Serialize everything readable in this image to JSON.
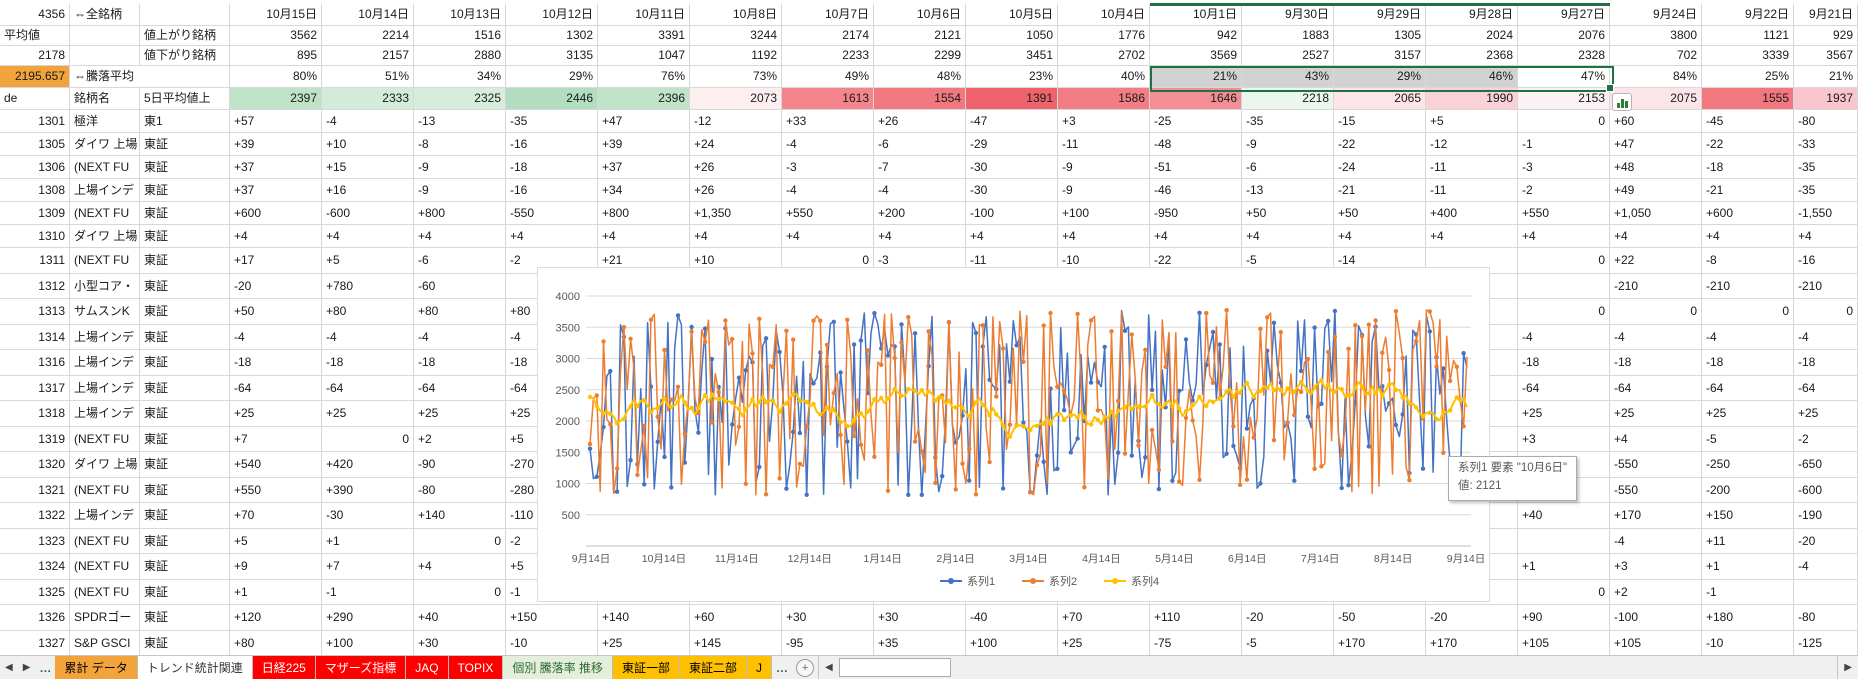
{
  "summary_header": {
    "total_stocks": "4356",
    "all_label": "⇔全銘柄",
    "avg_label": "平均値",
    "avg_value": "2178",
    "updown_avg_value": "2195.657",
    "updown_avg_label": "⇔騰落平均",
    "advancers_label": "値上がり銘柄",
    "decliners_label": "値下がり銘柄",
    "code_header": "de",
    "name_header": "銘柄名",
    "avg5_header": "5日平均値上",
    "dates": [
      "10月15日",
      "10月14日",
      "10月13日",
      "10月12日",
      "10月11日",
      "10月8日",
      "10月7日",
      "10月6日",
      "10月5日",
      "10月4日",
      "10月1日",
      "9月30日",
      "9月29日",
      "9月28日",
      "9月27日",
      "9月24日",
      "9月22日",
      "9月21日"
    ],
    "advancers": [
      "3562",
      "2214",
      "1516",
      "1302",
      "3391",
      "3244",
      "2174",
      "2121",
      "1050",
      "1776",
      "942",
      "1883",
      "1305",
      "2024",
      "2076",
      "3800",
      "1121",
      "929"
    ],
    "decliners": [
      "895",
      "2157",
      "2880",
      "3135",
      "1047",
      "1192",
      "2233",
      "2299",
      "3451",
      "2702",
      "3569",
      "2527",
      "3157",
      "2368",
      "2328",
      "702",
      "3339",
      "3567"
    ],
    "updown_pct": [
      "80%",
      "51%",
      "34%",
      "29%",
      "76%",
      "73%",
      "49%",
      "48%",
      "23%",
      "40%",
      "21%",
      "43%",
      "29%",
      "46%",
      "47%",
      "84%",
      "25%",
      "21%"
    ],
    "avg5_cells": [
      [
        "2397",
        "#bfe3c9"
      ],
      [
        "2333",
        "#d3ecd9"
      ],
      [
        "2325",
        "#d5edda"
      ],
      [
        "2446",
        "#b3ddc0"
      ],
      [
        "2396",
        "#c0e3c9"
      ],
      [
        "2073",
        "#fdeef0"
      ],
      [
        "1613",
        "#f4858c"
      ],
      [
        "1554",
        "#f27880"
      ],
      [
        "1391",
        "#ee636c"
      ],
      [
        "1586",
        "#f37d85"
      ],
      [
        "1646",
        "#f48e95"
      ],
      [
        "2218",
        "#ebf6ef"
      ],
      [
        "2065",
        "#fce4e8"
      ],
      [
        "1990",
        "#f9d1d7"
      ],
      [
        "2153",
        "#fdf2f3"
      ],
      [
        "2075",
        "#fce5e9"
      ],
      [
        "1555",
        "#f27880"
      ],
      [
        "1937",
        "#f8c6cc"
      ]
    ],
    "selected_pct_range": {
      "first_col": 10,
      "last_col": 14,
      "gray_cols": [
        10,
        11,
        12,
        13
      ],
      "active_value": "47%"
    }
  },
  "stocks": [
    {
      "code": "1301",
      "name": "極洋",
      "market": "東1",
      "vals": [
        "+57",
        "-4",
        "-13",
        "-35",
        "+47",
        "-12",
        "+33",
        "+26",
        "-47",
        "+3",
        "-25",
        "-35",
        "-15",
        "+5",
        "0",
        "+60",
        "-45",
        "-80"
      ]
    },
    {
      "code": "1305",
      "name": "ダイワ 上場",
      "market": "東証",
      "vals": [
        "+39",
        "+10",
        "-8",
        "-16",
        "+39",
        "+24",
        "-4",
        "-6",
        "-29",
        "-11",
        "-48",
        "-9",
        "-22",
        "-12",
        "-1",
        "+47",
        "-22",
        "-33"
      ]
    },
    {
      "code": "1306",
      "name": "(NEXT FU",
      "market": "東証",
      "vals": [
        "+37",
        "+15",
        "-9",
        "-18",
        "+37",
        "+26",
        "-3",
        "-7",
        "-30",
        "-9",
        "-51",
        "-6",
        "-24",
        "-11",
        "-3",
        "+48",
        "-18",
        "-35"
      ]
    },
    {
      "code": "1308",
      "name": "上場インデ",
      "market": "東証",
      "vals": [
        "+37",
        "+16",
        "-9",
        "-16",
        "+34",
        "+26",
        "-4",
        "-4",
        "-30",
        "-9",
        "-46",
        "-13",
        "-21",
        "-11",
        "-2",
        "+49",
        "-21",
        "-35"
      ]
    },
    {
      "code": "1309",
      "name": "(NEXT FU",
      "market": "東証",
      "vals": [
        "+600",
        "-600",
        "+800",
        "-550",
        "+800",
        "+1,350",
        "+550",
        "+200",
        "-100",
        "+100",
        "-950",
        "+50",
        "+50",
        "+400",
        "+550",
        "+1,050",
        "+600",
        "-1,550"
      ]
    },
    {
      "code": "1310",
      "name": "ダイワ 上場",
      "market": "東証",
      "vals": [
        "+4",
        "+4",
        "+4",
        "+4",
        "+4",
        "+4",
        "+4",
        "+4",
        "+4",
        "+4",
        "+4",
        "+4",
        "+4",
        "+4",
        "+4",
        "+4",
        "+4",
        "+4"
      ]
    },
    {
      "code": "1311",
      "name": "(NEXT FU",
      "market": "東証",
      "vals": [
        "+17",
        "+5",
        "-6",
        "-2",
        "+21",
        "+10",
        "0",
        "-3",
        "-11",
        "-10",
        "-22",
        "-5",
        "-14",
        "",
        "0",
        "+22",
        "-8",
        "-16"
      ]
    },
    {
      "code": "1312",
      "name": "小型コア・",
      "market": "東証",
      "vals": [
        "-20",
        "+780",
        "-60",
        "",
        "",
        "",
        "",
        "",
        "",
        "",
        "",
        "",
        "",
        "",
        "",
        "-210",
        "-210",
        "-210"
      ]
    },
    {
      "code": "1313",
      "name": "サムスンK",
      "market": "東証",
      "vals": [
        "+50",
        "+80",
        "+80",
        "+80",
        "",
        "",
        "",
        "",
        "",
        "",
        "",
        "",
        "",
        "",
        "0",
        "0",
        "0",
        "0"
      ]
    },
    {
      "code": "1314",
      "name": "上場インデ",
      "market": "東証",
      "vals": [
        "-4",
        "-4",
        "-4",
        "-4",
        "",
        "",
        "",
        "",
        "",
        "",
        "",
        "",
        "",
        "",
        "-4",
        "-4",
        "-4",
        "-4"
      ]
    },
    {
      "code": "1316",
      "name": "上場インデ",
      "market": "東証",
      "vals": [
        "-18",
        "-18",
        "-18",
        "-18",
        "",
        "",
        "",
        "",
        "",
        "",
        "",
        "",
        "",
        "",
        "-18",
        "-18",
        "-18",
        "-18"
      ]
    },
    {
      "code": "1317",
      "name": "上場インデ",
      "market": "東証",
      "vals": [
        "-64",
        "-64",
        "-64",
        "-64",
        "",
        "",
        "",
        "",
        "",
        "",
        "",
        "",
        "",
        "",
        "-64",
        "-64",
        "-64",
        "-64"
      ]
    },
    {
      "code": "1318",
      "name": "上場インデ",
      "market": "東証",
      "vals": [
        "+25",
        "+25",
        "+25",
        "+25",
        "",
        "",
        "",
        "",
        "",
        "",
        "",
        "",
        "",
        "",
        "+25",
        "+25",
        "+25",
        "+25"
      ]
    },
    {
      "code": "1319",
      "name": "(NEXT FU",
      "market": "東証",
      "vals": [
        "+7",
        "0",
        "+2",
        "+5",
        "",
        "",
        "",
        "",
        "",
        "",
        "",
        "",
        "",
        "",
        "+3",
        "+4",
        "-5",
        "-2"
      ]
    },
    {
      "code": "1320",
      "name": "ダイワ 上場",
      "market": "東証",
      "vals": [
        "+540",
        "+420",
        "-90",
        "-270",
        "",
        "",
        "",
        "",
        "",
        "",
        "",
        "",
        "",
        "",
        "",
        "-550",
        "-250",
        "-650"
      ]
    },
    {
      "code": "1321",
      "name": "(NEXT FU",
      "market": "東証",
      "vals": [
        "+550",
        "+390",
        "-80",
        "-280",
        "",
        "",
        "",
        "",
        "",
        "",
        "",
        "",
        "",
        "",
        "",
        "-550",
        "-200",
        "-600"
      ]
    },
    {
      "code": "1322",
      "name": "上場インデ",
      "market": "東証",
      "vals": [
        "+70",
        "-30",
        "+140",
        "-110",
        "",
        "",
        "",
        "",
        "",
        "",
        "",
        "",
        "",
        "",
        "+40",
        "+170",
        "+150",
        "-190"
      ]
    },
    {
      "code": "1323",
      "name": "(NEXT FU",
      "market": "東証",
      "vals": [
        "+5",
        "+1",
        "0",
        "-2",
        "",
        "",
        "",
        "",
        "",
        "",
        "",
        "",
        "",
        "",
        "",
        "-4",
        "+11",
        "-20"
      ]
    },
    {
      "code": "1324",
      "name": "(NEXT FU",
      "market": "東証",
      "vals": [
        "+9",
        "+7",
        "+4",
        "+5",
        "",
        "",
        "",
        "",
        "",
        "",
        "",
        "",
        "",
        "",
        "+1",
        "+3",
        "+1",
        "-4"
      ]
    },
    {
      "code": "1325",
      "name": "(NEXT FU",
      "market": "東証",
      "vals": [
        "+1",
        "-1",
        "0",
        "-1",
        "",
        "",
        "",
        "",
        "",
        "",
        "",
        "",
        "",
        "",
        "0",
        "+2",
        "-1",
        ""
      ]
    },
    {
      "code": "1326",
      "name": "SPDRゴー",
      "market": "東証",
      "vals": [
        "+120",
        "+290",
        "+40",
        "+150",
        "+140",
        "+60",
        "+30",
        "+30",
        "-40",
        "+70",
        "+110",
        "-20",
        "-50",
        "-20",
        "+90",
        "-100",
        "+180",
        "-80"
      ]
    },
    {
      "code": "1327",
      "name": "S&P GSCI",
      "market": "東証",
      "vals": [
        "+80",
        "+100",
        "+30",
        "-10",
        "+25",
        "+145",
        "-95",
        "+35",
        "+100",
        "+25",
        "-75",
        "-5",
        "+170",
        "+170",
        "+105",
        "+105",
        "-10",
        "-125"
      ]
    }
  ],
  "chart_data": {
    "type": "line",
    "title": "",
    "x_tick_labels": [
      "9月14日",
      "10月14日",
      "11月14日",
      "12月14日",
      "1月14日",
      "2月14日",
      "3月14日",
      "4月14日",
      "5月14日",
      "6月14日",
      "7月14日",
      "8月14日",
      "9月14日"
    ],
    "y_ticks": [
      4000,
      3500,
      3000,
      2500,
      2000,
      1500,
      1000,
      500
    ],
    "ylim": [
      0,
      4000
    ],
    "grid": "horizontal",
    "n_points_per_series": 260,
    "series": [
      {
        "name": "系列1",
        "color": "#4472C4",
        "approx_range": [
          850,
          3780
        ],
        "pattern": "daily, highly volatile"
      },
      {
        "name": "系列2",
        "color": "#ED7D31",
        "approx_range": [
          850,
          3780
        ],
        "pattern": "daily, highly volatile"
      },
      {
        "name": "系列4",
        "color": "#FFC000",
        "approx_range": [
          1700,
          2940
        ],
        "pattern": "smoothed moving average"
      }
    ],
    "legend": {
      "position": "bottom",
      "entries": [
        "系列1",
        "系列2",
        "系列4"
      ]
    },
    "tooltip_point": {
      "series": "系列1",
      "category": "10月6日",
      "value": 2121
    },
    "gen": {
      "seed1": 11,
      "seed2": 77,
      "seed3": 123
    }
  },
  "tooltip": {
    "line1": "系列1 要素 \"10月6日\"",
    "line2": "値: 2121"
  },
  "sheet_tabs": {
    "nav_left": "◀",
    "nav_right": "▶",
    "ellipsis": "…",
    "add_label": "+",
    "tabs": [
      {
        "label": "累計 データ",
        "bg": "#F2A33C",
        "fg": "#000000"
      },
      {
        "label": "トレンド統計関連",
        "bg": "#FFFFFF",
        "fg": "#333333"
      },
      {
        "label": "日経225",
        "bg": "#FF0000",
        "fg": "#FFFFFF"
      },
      {
        "label": "マザーズ指標",
        "bg": "#FF0000",
        "fg": "#FFFFFF"
      },
      {
        "label": "JAQ",
        "bg": "#FF0000",
        "fg": "#FFFFFF"
      },
      {
        "label": "TOPIX",
        "bg": "#FF0000",
        "fg": "#FFFFFF"
      },
      {
        "label": "個別 騰落率 推移",
        "bg": "#E3EFDC",
        "fg": "#2E6B34"
      },
      {
        "label": "東証一部",
        "bg": "#FFC000",
        "fg": "#000000"
      },
      {
        "label": "東証二部",
        "bg": "#FFC000",
        "fg": "#000000"
      },
      {
        "label": "J",
        "bg": "#FFC000",
        "fg": "#000000"
      }
    ],
    "scroll_left": "◀",
    "scroll_right": "▶"
  },
  "colors": {
    "selection_green": "#1E7145",
    "selected_fill": "#d2d2d2",
    "highlight_orange": "#F2A33C",
    "grid_line": "#d8d8d8"
  }
}
